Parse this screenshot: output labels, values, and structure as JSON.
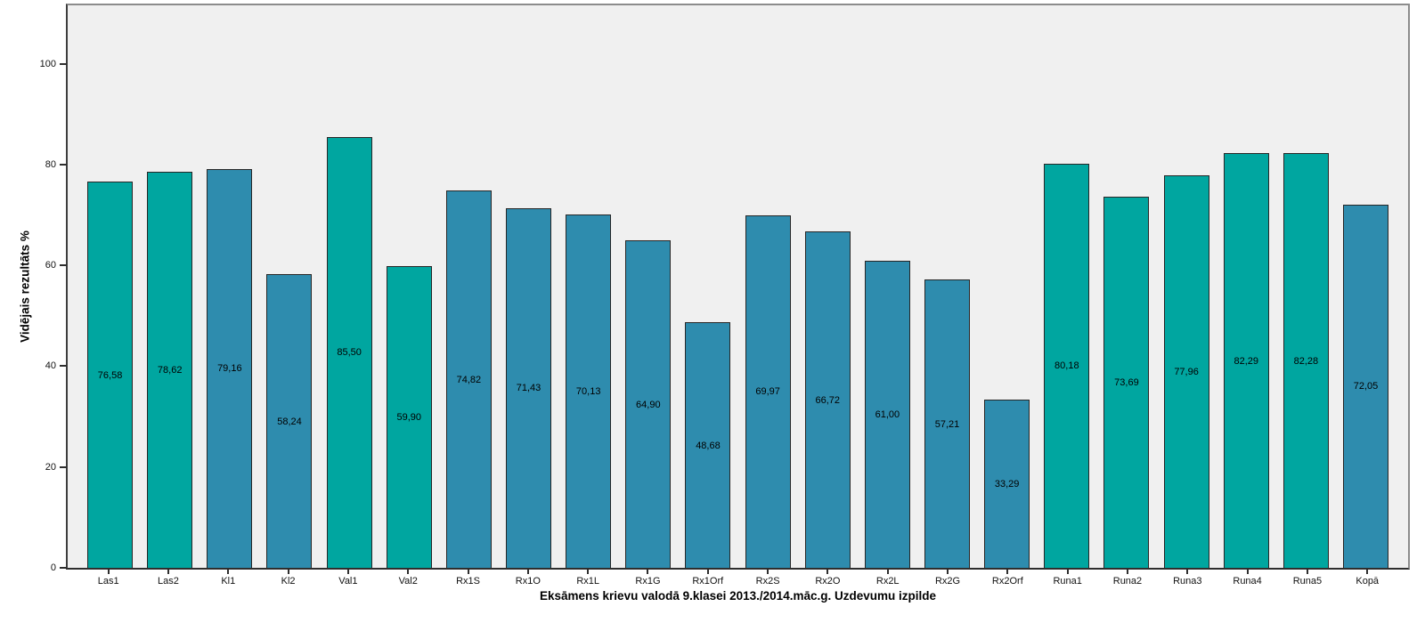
{
  "chart_data": {
    "type": "bar",
    "title": "",
    "xlabel": "Eksāmens krievu valodā 9.klasei 2013./2014.māc.g. Uzdevumu izpilde",
    "ylabel": "Vidējais rezultāts %",
    "ylim": [
      0,
      111.6
    ],
    "yticks": [
      0,
      20,
      40,
      60,
      80,
      100
    ],
    "grid": false,
    "legend": "none",
    "decimal_separator": ",",
    "categories": [
      "Las1",
      "Las2",
      "Kl1",
      "Kl2",
      "Val1",
      "Val2",
      "Rx1S",
      "Rx1O",
      "Rx1L",
      "Rx1G",
      "Rx1Orf",
      "Rx2S",
      "Rx2O",
      "Rx2L",
      "Rx2G",
      "Rx2Orf",
      "Runa1",
      "Runa2",
      "Runa3",
      "Runa4",
      "Runa5",
      "Kopā"
    ],
    "values": [
      76.58,
      78.62,
      79.16,
      58.24,
      85.5,
      59.9,
      74.82,
      71.43,
      70.13,
      64.9,
      48.68,
      69.97,
      66.72,
      61.0,
      57.21,
      33.29,
      80.18,
      73.69,
      77.96,
      82.29,
      82.28,
      72.05
    ],
    "value_labels": [
      "76,58",
      "78,62",
      "79,16",
      "58,24",
      "85,50",
      "59,90",
      "74,82",
      "71,43",
      "70,13",
      "64,90",
      "48,68",
      "69,97",
      "66,72",
      "61,00",
      "57,21",
      "33,29",
      "80,18",
      "73,69",
      "77,96",
      "82,29",
      "82,28",
      "72,05"
    ],
    "bar_color_keys": [
      "teal",
      "teal",
      "blue",
      "blue",
      "teal",
      "teal",
      "blue",
      "blue",
      "blue",
      "blue",
      "blue",
      "blue",
      "blue",
      "blue",
      "blue",
      "blue",
      "teal",
      "teal",
      "teal",
      "teal",
      "teal",
      "blue"
    ],
    "colors": {
      "teal": "#00a6a0",
      "blue": "#2e8cae",
      "plot_background": "#f0f0f0",
      "bar_border": "#262626",
      "frame_light": "#8c8c8c",
      "frame_dark": "#3d3d3d",
      "text": "#000000"
    }
  }
}
